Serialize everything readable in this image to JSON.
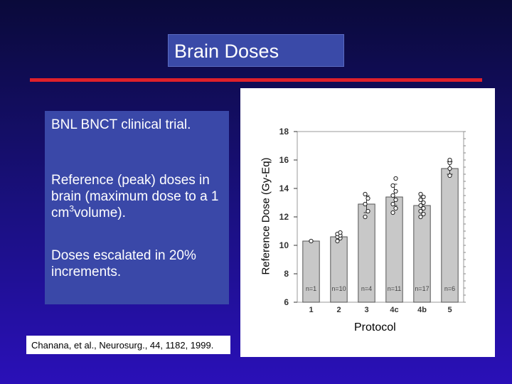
{
  "slide": {
    "title": "Brain Doses",
    "paragraphs": [
      "BNL BNCT clinical trial.",
      "Reference (peak) doses in brain (maximum dose to a 1 cm",
      "volume).",
      "Doses escalated in 20% increments."
    ],
    "superscript": "3",
    "citation": "Chanana, et al., Neurosurg., 44, 1182, 1999."
  },
  "chart_data": {
    "type": "bar",
    "categories": [
      "1",
      "2",
      "3",
      "4c",
      "4b",
      "5"
    ],
    "values": [
      10.3,
      10.6,
      12.9,
      13.4,
      12.8,
      15.4
    ],
    "n_labels": [
      "n=1",
      "n=10",
      "n=4",
      "n=11",
      "n=17",
      "n=6"
    ],
    "points": [
      [
        10.3
      ],
      [
        10.3,
        10.5,
        10.6,
        10.7,
        10.8,
        10.9
      ],
      [
        12.0,
        12.4,
        12.9,
        13.3,
        13.6
      ],
      [
        12.3,
        12.6,
        12.9,
        13.2,
        13.5,
        13.8,
        14.2,
        14.7
      ],
      [
        12.0,
        12.2,
        12.4,
        12.6,
        12.8,
        13.0,
        13.2,
        13.4,
        13.6
      ],
      [
        14.9,
        15.4,
        15.8,
        16.0
      ]
    ],
    "error_low": [
      10.3,
      10.4,
      12.3,
      12.8,
      12.3,
      15.0
    ],
    "error_high": [
      10.3,
      10.8,
      13.5,
      14.3,
      13.4,
      15.9
    ],
    "ylabel": "Reference Dose (Gy-Eq)",
    "xlabel": "Protocol",
    "ylim": [
      6,
      18
    ],
    "yticks": [
      "6",
      "8",
      "10",
      "12",
      "14",
      "16",
      "18"
    ],
    "colors": {
      "bar": "#c8c8c8",
      "bar_edge": "#555555",
      "axis": "#333333"
    }
  }
}
